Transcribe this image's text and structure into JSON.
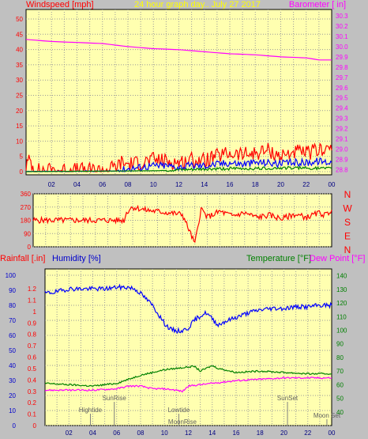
{
  "chart_data": [
    {
      "type": "line",
      "title": "24 hour graph day.. July 27 2017",
      "left_label": "Windspeed [mph]",
      "right_label": "Barometer [ in]",
      "x_ticks": [
        "02",
        "04",
        "06",
        "08",
        "10",
        "12",
        "14",
        "16",
        "18",
        "20",
        "22",
        "00"
      ],
      "y_left_ticks": [
        0,
        5,
        10,
        15,
        20,
        25,
        30,
        35,
        40,
        45,
        50
      ],
      "y_left_range": [
        0,
        50
      ],
      "y_right_ticks": [
        28.8,
        28.9,
        29.0,
        29.1,
        29.2,
        29.3,
        29.4,
        29.5,
        29.6,
        29.7,
        29.8,
        29.9,
        30.0,
        30.1,
        30.2,
        30.3
      ],
      "y_right_range": [
        28.75,
        30.3
      ],
      "grid": true,
      "series": [
        {
          "key": "barometer",
          "axis": "right",
          "color": "#ff00ff",
          "x": [
            0,
            2,
            4,
            6,
            8,
            10,
            12,
            14,
            16,
            18,
            20,
            22,
            23,
            24
          ],
          "values": [
            30.07,
            30.05,
            30.04,
            30.03,
            30.0,
            29.98,
            29.97,
            29.95,
            29.93,
            29.92,
            29.9,
            29.89,
            29.87,
            29.87
          ]
        },
        {
          "key": "gust",
          "axis": "left",
          "color": "#ff0000",
          "x": [
            0,
            0.3,
            0.6,
            1,
            2,
            3,
            4,
            5,
            6,
            7,
            7.5,
            8,
            9,
            10,
            11,
            12,
            13,
            14,
            15,
            16,
            17,
            18,
            19,
            20,
            21,
            22,
            23,
            23.5,
            24
          ],
          "values": [
            2,
            4,
            1,
            0.5,
            0.5,
            0.5,
            0.5,
            0.5,
            0.5,
            1.5,
            3,
            2.5,
            3,
            4,
            3.5,
            3,
            4,
            3.5,
            5,
            6,
            5.5,
            6,
            7,
            5,
            6.5,
            6,
            7,
            8,
            7
          ]
        },
        {
          "key": "wind_avg",
          "axis": "left",
          "color": "#0000ff",
          "x": [
            0,
            7,
            8,
            9,
            10,
            11,
            12,
            13,
            14,
            15,
            16,
            17,
            18,
            19,
            20,
            21,
            22,
            23,
            24
          ],
          "values": [
            0,
            0.2,
            1,
            1.5,
            2,
            2,
            1.5,
            2,
            2,
            2.5,
            3,
            2.5,
            3,
            3,
            2.5,
            3,
            3,
            3.5,
            3
          ]
        },
        {
          "key": "wind_green",
          "axis": "left",
          "color": "#008000",
          "x": [
            0,
            10,
            12,
            14,
            16,
            18,
            20,
            22,
            24
          ],
          "values": [
            0,
            0.3,
            0.5,
            0.8,
            1,
            1,
            1.2,
            1.2,
            1
          ]
        }
      ]
    },
    {
      "type": "line",
      "y_left_ticks": [
        0,
        90,
        180,
        270,
        360
      ],
      "y_left_range": [
        0,
        360
      ],
      "compass": [
        "N",
        "W",
        "S",
        "E",
        "N"
      ],
      "grid": true,
      "series": [
        {
          "key": "wind_dir",
          "color": "#ff0000",
          "x": [
            0,
            7.3,
            7.5,
            7.8,
            8,
            9,
            10,
            11,
            12,
            12.5,
            13,
            13.5,
            14,
            15,
            16,
            17,
            18,
            19,
            20,
            21,
            22,
            23,
            23.5,
            24
          ],
          "values": [
            180,
            180,
            230,
            260,
            270,
            250,
            240,
            230,
            220,
            120,
            20,
            260,
            200,
            240,
            210,
            230,
            200,
            215,
            190,
            220,
            200,
            230,
            215,
            250
          ]
        }
      ]
    },
    {
      "type": "line",
      "labels": {
        "rainfall": "Rainfall [.in]",
        "humidity": "Humidity [%]",
        "temperature": "Temperature [°F]",
        "dewpoint": "Dew Point [°F]"
      },
      "x_ticks": [
        "02",
        "04",
        "06",
        "08",
        "10",
        "12",
        "14",
        "16",
        "18",
        "20",
        "22",
        "00"
      ],
      "y_humidity_ticks": [
        0,
        10,
        20,
        30,
        40,
        50,
        60,
        70,
        80,
        90,
        100
      ],
      "y_rain_ticks": [
        0,
        0.1,
        0.2,
        0.3,
        0.4,
        0.5,
        0.6,
        0.7,
        0.8,
        0.9,
        1,
        1.1,
        1.2
      ],
      "y_temp_ticks": [
        40,
        50,
        60,
        70,
        80,
        90,
        100,
        110,
        120,
        130,
        140
      ],
      "y_temp_range": [
        30,
        145
      ],
      "events": [
        {
          "label": "Hightide",
          "x": 3.8,
          "row": 0
        },
        {
          "label": "SunRise",
          "x": 5.8,
          "row": 1
        },
        {
          "label": "Lowtide",
          "x": 11.2,
          "row": 0
        },
        {
          "label": "MoonRise",
          "x": 11.5,
          "row": 2
        },
        {
          "label": "SunSet",
          "x": 20.3,
          "row": 1
        },
        {
          "label": "Moon Set",
          "x": 23.6,
          "row": 3
        }
      ],
      "grid": true,
      "series": [
        {
          "key": "humidity",
          "axis": "humidity",
          "color": "#0000ff",
          "x": [
            0,
            1,
            2,
            3,
            4,
            5,
            6,
            7,
            7.5,
            8,
            8.5,
            9,
            9.5,
            10,
            10.5,
            11,
            11.5,
            12,
            12.5,
            13,
            13.5,
            14,
            14.5,
            15,
            16,
            17,
            18,
            19,
            20,
            21,
            22,
            23,
            24
          ],
          "values": [
            88,
            89,
            91,
            91,
            91,
            91,
            92,
            92,
            91,
            88,
            84,
            80,
            74,
            68,
            64,
            63,
            63,
            65,
            70,
            73,
            75,
            71,
            67,
            69,
            72,
            75,
            77,
            78,
            78,
            79,
            79,
            80,
            80
          ]
        },
        {
          "key": "temperature",
          "axis": "temp",
          "color": "#008000",
          "x": [
            0,
            2,
            4,
            5,
            6,
            7,
            8,
            9,
            10,
            11,
            12,
            12.5,
            13,
            13.5,
            14,
            14.5,
            15,
            16,
            18,
            20,
            22,
            24
          ],
          "values": [
            61,
            60,
            59,
            60,
            61,
            64,
            67,
            69,
            71,
            72,
            73,
            73.5,
            70,
            72,
            74,
            72,
            71,
            69,
            70,
            69,
            68,
            68
          ]
        },
        {
          "key": "dewpoint",
          "axis": "temp",
          "color": "#ff00ff",
          "x": [
            0,
            2,
            4,
            6,
            7,
            8,
            9,
            10,
            11,
            11.5,
            12,
            13,
            14,
            15,
            16,
            18,
            20,
            22,
            24
          ],
          "values": [
            56,
            56,
            56,
            57,
            59,
            59,
            57,
            57,
            56,
            55,
            59,
            60,
            61,
            62,
            63,
            64,
            65,
            65,
            65
          ]
        }
      ]
    }
  ]
}
